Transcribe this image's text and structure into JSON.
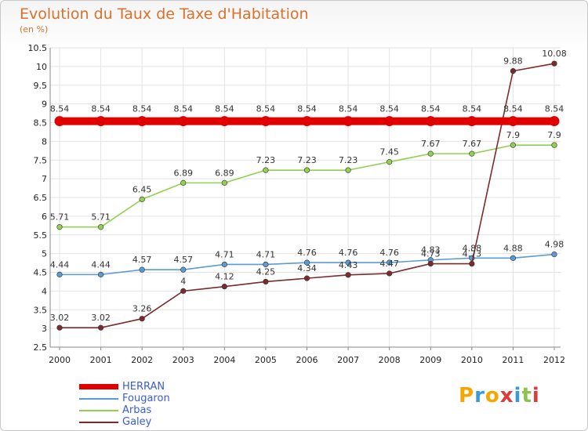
{
  "header": {
    "title": "Evolution du Taux de Taxe d'Habitation",
    "subtitle": "(en %)"
  },
  "chart_data": {
    "type": "line",
    "title": "Evolution du Taux de Taxe d'Habitation",
    "ylabel": "(en %)",
    "xlabel": "",
    "ylim": [
      2.5,
      10.5
    ],
    "yticks": [
      "2.5",
      "3",
      "3.5",
      "4",
      "4.5",
      "5",
      "5.5",
      "6",
      "6.5",
      "7",
      "7.5",
      "8",
      "8.5",
      "9",
      "9.5",
      "10",
      "10.5"
    ],
    "categories": [
      "2000",
      "2001",
      "2002",
      "2003",
      "2004",
      "2005",
      "2006",
      "2007",
      "2008",
      "2009",
      "2010",
      "2011",
      "2012"
    ],
    "series": [
      {
        "name": "HERRAN",
        "color": "#e00000",
        "values": [
          8.54,
          8.54,
          8.54,
          8.54,
          8.54,
          8.54,
          8.54,
          8.54,
          8.54,
          8.54,
          8.54,
          8.54,
          8.54
        ],
        "labels": [
          "8.54",
          "8.54",
          "8.54",
          "8.54",
          "8.54",
          "8.54",
          "8.54",
          "8.54",
          "8.54",
          "8.54",
          "8.54",
          "8.54",
          "8.54"
        ]
      },
      {
        "name": "Fougaron",
        "color": "#5b9bd5",
        "values": [
          4.44,
          4.44,
          4.57,
          4.57,
          4.71,
          4.71,
          4.76,
          4.76,
          4.76,
          4.83,
          4.88,
          4.88,
          4.98
        ],
        "labels": [
          "4.44",
          "4.44",
          "4.57",
          "4.57",
          "4.71",
          "4.71",
          "4.76",
          "4.76",
          "4.76",
          "4.83",
          "4.88",
          "4.88",
          "4.98"
        ]
      },
      {
        "name": "Arbas",
        "color": "#92d050",
        "values": [
          5.71,
          5.71,
          6.45,
          6.89,
          6.89,
          7.23,
          7.23,
          7.23,
          7.45,
          7.67,
          7.67,
          7.9,
          7.9
        ],
        "labels": [
          "5.71",
          "5.71",
          "6.45",
          "6.89",
          "6.89",
          "7.23",
          "7.23",
          "7.23",
          "7.45",
          "7.67",
          "7.67",
          "7.9",
          "7.9"
        ]
      },
      {
        "name": "Galey",
        "color": "#7b2b2b",
        "values": [
          3.02,
          3.02,
          3.26,
          4.0,
          4.12,
          4.25,
          4.34,
          4.43,
          4.47,
          4.73,
          4.73,
          9.88,
          10.08
        ],
        "labels": [
          "3.02",
          "3.02",
          "3.26",
          "4",
          "4.12",
          "4.25",
          "4.34",
          "4.43",
          "4.47",
          "4.73",
          "4.73",
          "9.88",
          "10.08"
        ]
      }
    ],
    "legend": [
      "HERRAN",
      "Fougaron",
      "Arbas",
      "Galey"
    ],
    "legend_position": "bottom-left"
  },
  "logo": {
    "letters": [
      "P",
      "r",
      "o",
      "x",
      "i",
      "t",
      "i"
    ],
    "colors": [
      "#f7a600",
      "#3a9ad9",
      "#f7a600",
      "#e03a3a",
      "#3a9ad9",
      "#8bc34a",
      "#e03a3a"
    ]
  }
}
